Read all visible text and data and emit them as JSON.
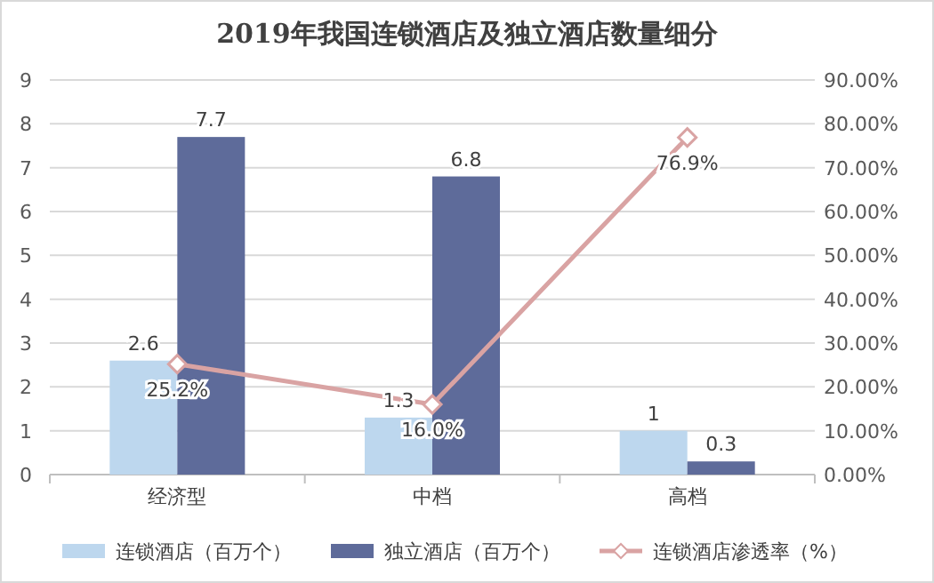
{
  "chart_data": {
    "type": "bar",
    "title": "2019年我国连锁酒店及独立酒店数量细分",
    "categories": [
      "经济型",
      "中档",
      "高档"
    ],
    "series": [
      {
        "name": "连锁酒店（百万个）",
        "color": "#bdd7ee",
        "values": [
          2.6,
          1.3,
          1
        ],
        "value_labels": [
          "2.6",
          "1.3",
          "1"
        ]
      },
      {
        "name": "独立酒店（百万个）",
        "color": "#5e6b9a",
        "values": [
          7.7,
          6.8,
          0.3
        ],
        "value_labels": [
          "7.7",
          "6.8",
          "0.3"
        ]
      },
      {
        "name": "连锁酒店渗透率（%）",
        "type": "line",
        "axis": "y2",
        "marker": "diamond",
        "color": "#d9a3a3",
        "values": [
          25.2,
          16.0,
          76.9
        ],
        "value_labels": [
          "25.2%",
          "16.0%",
          "76.9%"
        ]
      }
    ],
    "ylim": [
      0,
      9
    ],
    "yticks": [
      0,
      1,
      2,
      3,
      4,
      5,
      6,
      7,
      8,
      9
    ],
    "y2lim": [
      0,
      90
    ],
    "y2ticks": [
      {
        "value": 0,
        "label": "0.00%"
      },
      {
        "value": 10,
        "label": "10.00%"
      },
      {
        "value": 20,
        "label": "20.00%"
      },
      {
        "value": 30,
        "label": "30.00%"
      },
      {
        "value": 40,
        "label": "40.00%"
      },
      {
        "value": 50,
        "label": "50.00%"
      },
      {
        "value": 60,
        "label": "60.00%"
      },
      {
        "value": 70,
        "label": "70.00%"
      },
      {
        "value": 80,
        "label": "80.00%"
      },
      {
        "value": 90,
        "label": "90.00%"
      }
    ],
    "grid": "y",
    "legend": "bottom"
  }
}
